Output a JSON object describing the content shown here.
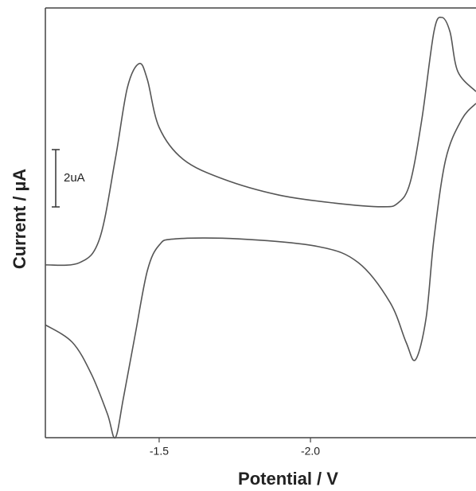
{
  "chart_data": {
    "type": "line",
    "x_label": "Potential / V",
    "y_label": "Current / µA",
    "xlim": [
      -1.124,
      -2.547
    ],
    "ylim": [
      0,
      15
    ],
    "xticks": [
      -1.5,
      {
        "value": -2,
        "label": "-2.0"
      }
    ],
    "scale_bar": {
      "value": 2,
      "label": "2uA"
    },
    "color": "#555555",
    "series": [
      {
        "x": [
          -1.124,
          -1.237,
          -1.303,
          -1.355,
          -1.395,
          -1.434,
          -1.461,
          -1.5,
          -1.579,
          -1.711,
          -1.895,
          -2.079,
          -2.237,
          -2.289,
          -2.329,
          -2.368,
          -2.408,
          -2.434,
          -2.461,
          -2.487,
          -2.547
        ],
        "values": [
          6.03,
          6.11,
          6.94,
          9.72,
          12.22,
          13.06,
          12.5,
          10.83,
          9.72,
          9.03,
          8.47,
          8.19,
          8.06,
          8.19,
          8.89,
          11.11,
          14.17,
          14.67,
          14.17,
          12.78,
          12.08
        ]
      },
      {
        "x": [
          -1.124,
          -1.213,
          -1.276,
          -1.329,
          -1.355,
          -1.382,
          -1.421,
          -1.461,
          -1.5,
          -1.553,
          -1.763,
          -2.026,
          -2.158,
          -2.263,
          -2.316,
          -2.347,
          -2.382,
          -2.408,
          -2.447,
          -2.5,
          -2.547
        ],
        "values": [
          3.94,
          3.33,
          2.22,
          0.83,
          0,
          1.39,
          3.61,
          5.83,
          6.72,
          6.94,
          6.94,
          6.67,
          6.11,
          4.72,
          3.33,
          2.72,
          4.17,
          6.94,
          9.72,
          11.11,
          11.67
        ]
      }
    ]
  }
}
